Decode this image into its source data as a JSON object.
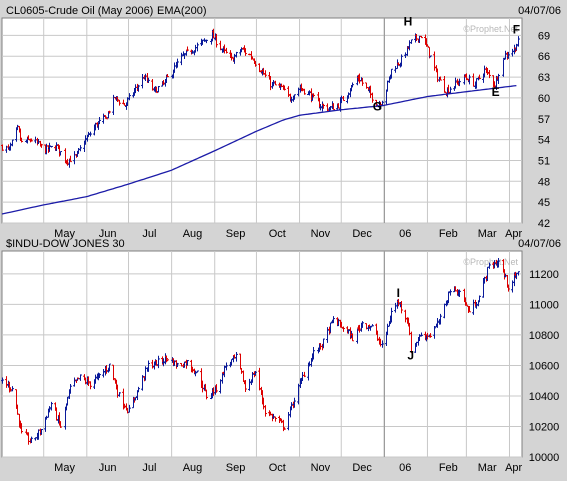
{
  "colors": {
    "background": "#d4d4d4",
    "plot_bg": "#ffffff",
    "grid": "#c8c8c8",
    "up_bar": "#0a1a9a",
    "down_bar": "#dd0000",
    "ema_line": "#1c1ca8",
    "text": "#000000",
    "watermark": "#b8b8b8"
  },
  "watermark": "©Prophet.Net",
  "chart_data": [
    {
      "type": "ohlc",
      "title": "CL0605-Crude Oil (May 2006)",
      "indicator_label": "EMA(200)",
      "date_label": "04/07/06",
      "x_months": [
        "May",
        "Jun",
        "Jul",
        "Aug",
        "Sep",
        "Oct",
        "Nov",
        "Dec",
        "06",
        "Feb",
        "Mar",
        "Apr"
      ],
      "y_ticks": [
        42,
        45,
        48,
        51,
        54,
        57,
        60,
        63,
        66,
        69
      ],
      "ylim": [
        42,
        71.5
      ],
      "grid": true,
      "price_path": [
        [
          "2005-04-01",
          53
        ],
        [
          "2005-04-06",
          52.5
        ],
        [
          "2005-04-12",
          55.5
        ],
        [
          "2005-04-15",
          53.5
        ],
        [
          "2005-04-22",
          54
        ],
        [
          "2005-05-02",
          52.5
        ],
        [
          "2005-05-10",
          53
        ],
        [
          "2005-05-17",
          51
        ],
        [
          "2005-05-24",
          51.5
        ],
        [
          "2005-05-31",
          54
        ],
        [
          "2005-06-07",
          56
        ],
        [
          "2005-06-14",
          57
        ],
        [
          "2005-06-21",
          60
        ],
        [
          "2005-06-28",
          59
        ],
        [
          "2005-07-05",
          61
        ],
        [
          "2005-07-12",
          63
        ],
        [
          "2005-07-19",
          61
        ],
        [
          "2005-07-26",
          62
        ],
        [
          "2005-08-02",
          64
        ],
        [
          "2005-08-09",
          66
        ],
        [
          "2005-08-16",
          67
        ],
        [
          "2005-08-23",
          68
        ],
        [
          "2005-08-30",
          69
        ],
        [
          "2005-09-06",
          67
        ],
        [
          "2005-09-13",
          65.5
        ],
        [
          "2005-09-20",
          67
        ],
        [
          "2005-09-27",
          66
        ],
        [
          "2005-10-04",
          64
        ],
        [
          "2005-10-11",
          62
        ],
        [
          "2005-10-18",
          61.5
        ],
        [
          "2005-10-25",
          60
        ],
        [
          "2005-11-01",
          61.5
        ],
        [
          "2005-11-08",
          60.5
        ],
        [
          "2005-11-15",
          59
        ],
        [
          "2005-11-22",
          58.5
        ],
        [
          "2005-11-29",
          59
        ],
        [
          "2005-12-06",
          61
        ],
        [
          "2005-12-13",
          63
        ],
        [
          "2005-12-20",
          61
        ],
        [
          "2005-12-27",
          59
        ],
        [
          "2005-12-31",
          60
        ],
        [
          "2006-01-06",
          64
        ],
        [
          "2006-01-13",
          65.5
        ],
        [
          "2006-01-20",
          68
        ],
        [
          "2006-01-27",
          69
        ],
        [
          "2006-02-01",
          67
        ],
        [
          "2006-02-08",
          63
        ],
        [
          "2006-02-14",
          61
        ],
        [
          "2006-02-21",
          62
        ],
        [
          "2006-02-28",
          63
        ],
        [
          "2006-03-07",
          62
        ],
        [
          "2006-03-14",
          64
        ],
        [
          "2006-03-21",
          62
        ],
        [
          "2006-03-28",
          66
        ],
        [
          "2006-04-04",
          67
        ],
        [
          "2006-04-07",
          68
        ]
      ],
      "ema_path": [
        [
          "2005-04-01",
          43.3
        ],
        [
          "2005-05-01",
          44.6
        ],
        [
          "2005-06-01",
          45.8
        ],
        [
          "2005-07-01",
          47.6
        ],
        [
          "2005-08-01",
          49.6
        ],
        [
          "2005-09-01",
          52.4
        ],
        [
          "2005-10-01",
          55.2
        ],
        [
          "2005-10-20",
          56.8
        ],
        [
          "2005-11-01",
          57.5
        ],
        [
          "2005-12-01",
          58.3
        ],
        [
          "2005-12-31",
          58.9
        ],
        [
          "2006-02-01",
          60.2
        ],
        [
          "2006-03-01",
          60.9
        ],
        [
          "2006-04-07",
          61.8
        ]
      ],
      "annotations": [
        {
          "label": "H",
          "date": "2006-01-18",
          "value": 70.4
        },
        {
          "label": "G",
          "date": "2005-12-27",
          "value": 58.2
        },
        {
          "label": "E",
          "date": "2006-03-22",
          "value": 60.3
        },
        {
          "label": "F",
          "date": "2006-04-06",
          "value": 69.3
        }
      ]
    },
    {
      "type": "ohlc",
      "title": "$INDU-DOW JONES 30",
      "date_label": "04/07/06",
      "x_months": [
        "May",
        "Jun",
        "Jul",
        "Aug",
        "Sep",
        "Oct",
        "Nov",
        "Dec",
        "06",
        "Feb",
        "Mar",
        "Apr"
      ],
      "y_ticks": [
        10000,
        10200,
        10400,
        10600,
        10800,
        11000,
        11200
      ],
      "ylim": [
        10000,
        11350
      ],
      "grid": true,
      "price_path": [
        [
          "2005-04-01",
          10500
        ],
        [
          "2005-04-08",
          10450
        ],
        [
          "2005-04-15",
          10150
        ],
        [
          "2005-04-22",
          10100
        ],
        [
          "2005-04-29",
          10180
        ],
        [
          "2005-05-06",
          10350
        ],
        [
          "2005-05-13",
          10200
        ],
        [
          "2005-05-20",
          10450
        ],
        [
          "2005-05-27",
          10520
        ],
        [
          "2005-06-03",
          10480
        ],
        [
          "2005-06-10",
          10530
        ],
        [
          "2005-06-17",
          10600
        ],
        [
          "2005-06-24",
          10400
        ],
        [
          "2005-07-01",
          10300
        ],
        [
          "2005-07-08",
          10450
        ],
        [
          "2005-07-15",
          10600
        ],
        [
          "2005-07-22",
          10620
        ],
        [
          "2005-07-29",
          10650
        ],
        [
          "2005-08-05",
          10600
        ],
        [
          "2005-08-12",
          10620
        ],
        [
          "2005-08-19",
          10550
        ],
        [
          "2005-08-26",
          10400
        ],
        [
          "2005-09-02",
          10450
        ],
        [
          "2005-09-09",
          10600
        ],
        [
          "2005-09-16",
          10650
        ],
        [
          "2005-09-23",
          10450
        ],
        [
          "2005-09-30",
          10560
        ],
        [
          "2005-10-07",
          10300
        ],
        [
          "2005-10-14",
          10250
        ],
        [
          "2005-10-21",
          10200
        ],
        [
          "2005-10-28",
          10380
        ],
        [
          "2005-11-04",
          10550
        ],
        [
          "2005-11-11",
          10680
        ],
        [
          "2005-11-18",
          10750
        ],
        [
          "2005-11-25",
          10900
        ],
        [
          "2005-12-02",
          10850
        ],
        [
          "2005-12-09",
          10780
        ],
        [
          "2005-12-16",
          10880
        ],
        [
          "2005-12-23",
          10850
        ],
        [
          "2005-12-30",
          10720
        ],
        [
          "2006-01-06",
          10950
        ],
        [
          "2006-01-11",
          11020
        ],
        [
          "2006-01-18",
          10880
        ],
        [
          "2006-01-20",
          10700
        ],
        [
          "2006-01-27",
          10800
        ],
        [
          "2006-02-03",
          10800
        ],
        [
          "2006-02-10",
          10900
        ],
        [
          "2006-02-17",
          11100
        ],
        [
          "2006-02-24",
          11080
        ],
        [
          "2006-03-03",
          10950
        ],
        [
          "2006-03-10",
          11050
        ],
        [
          "2006-03-17",
          11250
        ],
        [
          "2006-03-24",
          11280
        ],
        [
          "2006-03-31",
          11120
        ],
        [
          "2006-04-07",
          11200
        ]
      ],
      "annotations": [
        {
          "label": "I",
          "date": "2006-01-11",
          "value": 11050
        },
        {
          "label": "J",
          "date": "2006-01-20",
          "value": 10640
        }
      ]
    }
  ]
}
